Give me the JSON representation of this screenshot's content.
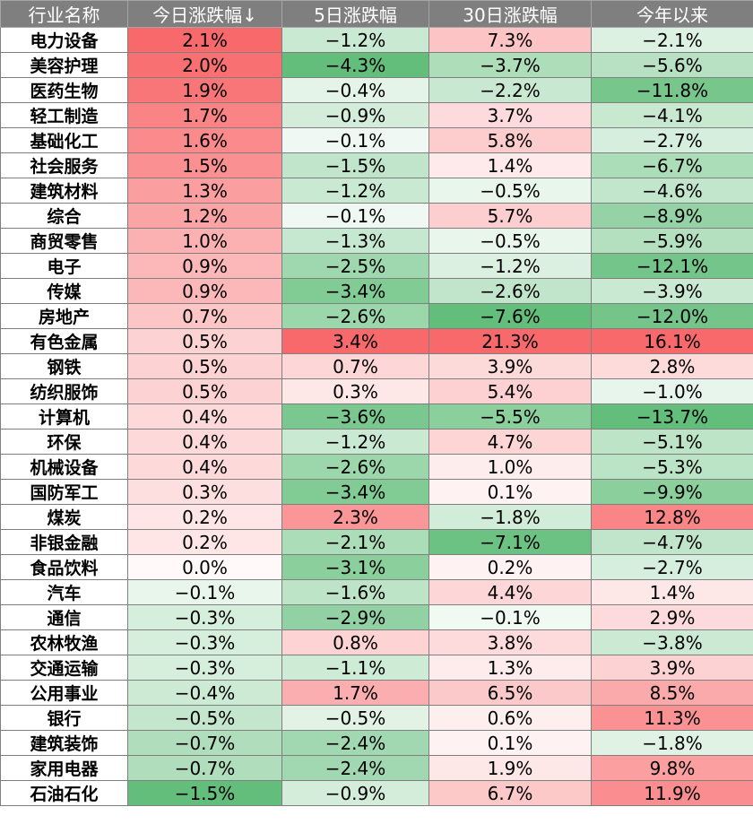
{
  "chart_data": {
    "type": "table",
    "columns": [
      "行业名称",
      "今日涨跌幅↓",
      "5日涨跌幅",
      "30日涨跌幅",
      "今年以来"
    ],
    "rows": [
      {
        "name": "电力设备",
        "values": [
          2.1,
          -1.2,
          7.3,
          -2.1
        ]
      },
      {
        "name": "美容护理",
        "values": [
          2.0,
          -4.3,
          -3.7,
          -5.6
        ]
      },
      {
        "name": "医药生物",
        "values": [
          1.9,
          -0.4,
          -2.2,
          -11.8
        ]
      },
      {
        "name": "轻工制造",
        "values": [
          1.7,
          -0.9,
          3.7,
          -4.1
        ]
      },
      {
        "name": "基础化工",
        "values": [
          1.6,
          -0.1,
          5.8,
          -2.7
        ]
      },
      {
        "name": "社会服务",
        "values": [
          1.5,
          -1.5,
          1.4,
          -6.7
        ]
      },
      {
        "name": "建筑材料",
        "values": [
          1.3,
          -1.2,
          -0.5,
          -4.6
        ]
      },
      {
        "name": "综合",
        "values": [
          1.2,
          -0.1,
          5.7,
          -8.9
        ]
      },
      {
        "name": "商贸零售",
        "values": [
          1.0,
          -1.3,
          -0.5,
          -5.9
        ]
      },
      {
        "name": "电子",
        "values": [
          0.9,
          -2.5,
          -1.2,
          -12.1
        ]
      },
      {
        "name": "传媒",
        "values": [
          0.9,
          -3.4,
          -2.6,
          -3.9
        ]
      },
      {
        "name": "房地产",
        "values": [
          0.7,
          -2.6,
          -7.6,
          -12.0
        ]
      },
      {
        "name": "有色金属",
        "values": [
          0.5,
          3.4,
          21.3,
          16.1
        ]
      },
      {
        "name": "钢铁",
        "values": [
          0.5,
          0.7,
          3.9,
          2.8
        ]
      },
      {
        "name": "纺织服饰",
        "values": [
          0.5,
          0.3,
          5.4,
          -1.0
        ]
      },
      {
        "name": "计算机",
        "values": [
          0.4,
          -3.6,
          -5.5,
          -13.7
        ]
      },
      {
        "name": "环保",
        "values": [
          0.4,
          -1.2,
          4.7,
          -5.1
        ]
      },
      {
        "name": "机械设备",
        "values": [
          0.4,
          -2.6,
          1.0,
          -5.3
        ]
      },
      {
        "name": "国防军工",
        "values": [
          0.3,
          -3.4,
          0.1,
          -9.9
        ]
      },
      {
        "name": "煤炭",
        "values": [
          0.2,
          2.3,
          -1.8,
          12.8
        ]
      },
      {
        "name": "非银金融",
        "values": [
          0.2,
          -2.1,
          -7.1,
          -4.7
        ]
      },
      {
        "name": "食品饮料",
        "values": [
          0.0,
          -3.1,
          0.2,
          -2.7
        ]
      },
      {
        "name": "汽车",
        "values": [
          -0.1,
          -1.6,
          4.4,
          1.4
        ]
      },
      {
        "name": "通信",
        "values": [
          -0.3,
          -2.9,
          -0.1,
          2.9
        ]
      },
      {
        "name": "农林牧渔",
        "values": [
          -0.3,
          0.8,
          3.8,
          -3.8
        ]
      },
      {
        "name": "交通运输",
        "values": [
          -0.3,
          -1.1,
          1.3,
          3.9
        ]
      },
      {
        "name": "公用事业",
        "values": [
          -0.4,
          1.7,
          6.5,
          8.5
        ]
      },
      {
        "name": "银行",
        "values": [
          -0.5,
          -0.5,
          0.6,
          11.3
        ]
      },
      {
        "name": "建筑装饰",
        "values": [
          -0.7,
          -2.4,
          0.1,
          -1.8
        ]
      },
      {
        "name": "家用电器",
        "values": [
          -0.7,
          -2.4,
          1.9,
          9.8
        ]
      },
      {
        "name": "石油石化",
        "values": [
          -1.5,
          -0.9,
          6.7,
          11.9
        ]
      }
    ],
    "colors": {
      "positive": "#f8696b",
      "negative": "#63be7b",
      "header_bg": "#7f7f7f",
      "header_text": "#ffffff",
      "border": "#7f7f7f"
    }
  }
}
